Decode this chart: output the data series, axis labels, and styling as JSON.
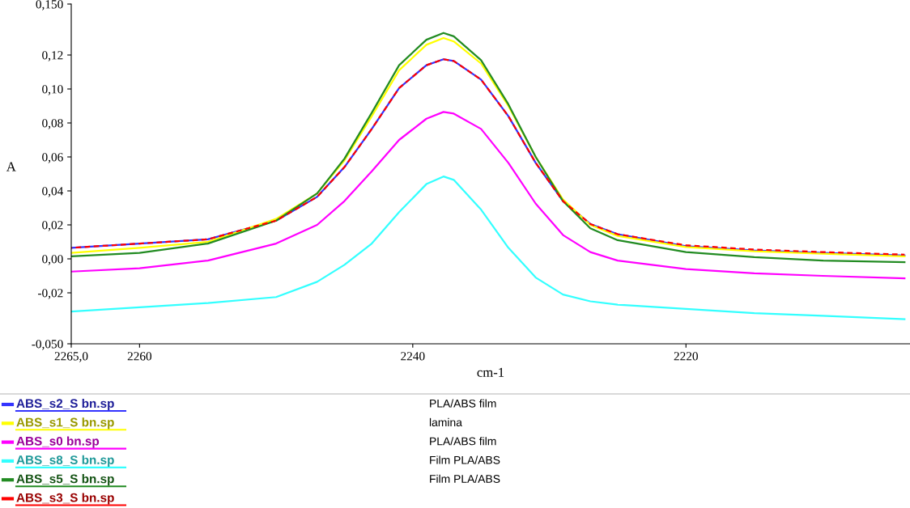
{
  "chart_data": {
    "type": "line",
    "xlabel": "cm-1",
    "ylabel": "A",
    "xlim": [
      2265,
      2203.6
    ],
    "xticks": [
      {
        "value": 2265,
        "label": "2265,0"
      },
      2260,
      2240,
      2220
    ],
    "ylim": [
      -0.05,
      0.15
    ],
    "yticks": [
      {
        "value": -0.05,
        "label": "-0,050"
      },
      {
        "value": -0.02,
        "label": "-0,02"
      },
      {
        "value": 0,
        "label": "0,00"
      },
      {
        "value": 0.02,
        "label": "0,02"
      },
      {
        "value": 0.04,
        "label": "0,04"
      },
      {
        "value": 0.06,
        "label": "0,06"
      },
      {
        "value": 0.08,
        "label": "0,08"
      },
      {
        "value": 0.1,
        "label": "0,10"
      },
      {
        "value": 0.12,
        "label": "0,12"
      },
      {
        "value": 0.15,
        "label": "0,150"
      }
    ],
    "grid": false,
    "legend": "bottom",
    "x": [
      2265,
      2260,
      2255,
      2250,
      2247,
      2245,
      2243,
      2241,
      2239,
      2237.75,
      2237,
      2235,
      2233,
      2231,
      2229,
      2227,
      2225,
      2220,
      2215,
      2210,
      2204
    ],
    "series": [
      {
        "name": "ABS_s2_S bn.sp",
        "color": "#3333ff",
        "values": [
          0.0065,
          0.009,
          0.0115,
          0.0225,
          0.0365,
          0.054,
          0.0765,
          0.1005,
          0.114,
          0.1175,
          0.1165,
          0.1055,
          0.084,
          0.0565,
          0.034,
          0.0205,
          0.0145,
          0.0075,
          0.005,
          0.0035,
          0.002
        ]
      },
      {
        "name": "ABS_s1_S bn.sp",
        "color": "#ffff00",
        "values": [
          0.0035,
          0.0065,
          0.01,
          0.0235,
          0.0385,
          0.058,
          0.084,
          0.111,
          0.126,
          0.13,
          0.128,
          0.115,
          0.09,
          0.06,
          0.035,
          0.02,
          0.0135,
          0.007,
          0.0045,
          0.003,
          0.0015
        ]
      },
      {
        "name": "ABS_s0 bn.sp",
        "color": "#ff00ff",
        "values": [
          -0.0075,
          -0.0055,
          -0.001,
          0.009,
          0.02,
          0.034,
          0.0515,
          0.07,
          0.0825,
          0.0865,
          0.0855,
          0.0765,
          0.0565,
          0.0325,
          0.014,
          0.004,
          -0.001,
          -0.006,
          -0.0085,
          -0.01,
          -0.0115
        ]
      },
      {
        "name": "ABS_s8_S bn.sp",
        "color": "#33ffff",
        "values": [
          -0.031,
          -0.0285,
          -0.026,
          -0.0225,
          -0.0135,
          -0.0035,
          0.009,
          0.0275,
          0.044,
          0.0485,
          0.0465,
          0.029,
          0.0065,
          -0.011,
          -0.021,
          -0.025,
          -0.027,
          -0.0295,
          -0.032,
          -0.0335,
          -0.0355
        ]
      },
      {
        "name": "ABS_s5_S bn.sp",
        "color": "#228b22",
        "values": [
          0.0015,
          0.0035,
          0.009,
          0.0225,
          0.0385,
          0.059,
          0.086,
          0.114,
          0.129,
          0.133,
          0.131,
          0.117,
          0.091,
          0.06,
          0.034,
          0.018,
          0.011,
          0.004,
          0.001,
          -0.001,
          -0.002
        ]
      },
      {
        "name": "ABS_s3_S bn.sp",
        "color": "#ff0000",
        "line_style": "dashed",
        "values": [
          0.0065,
          0.009,
          0.0115,
          0.0225,
          0.0365,
          0.054,
          0.0765,
          0.1005,
          0.114,
          0.1175,
          0.1165,
          0.1055,
          0.084,
          0.0565,
          0.034,
          0.0205,
          0.0145,
          0.008,
          0.0055,
          0.004,
          0.0025
        ]
      }
    ],
    "annotations": [
      "PLA/ABS film",
      "lamina",
      "PLA/ABS film",
      "Film PLA/ABS",
      "Film PLA/ABS"
    ]
  }
}
